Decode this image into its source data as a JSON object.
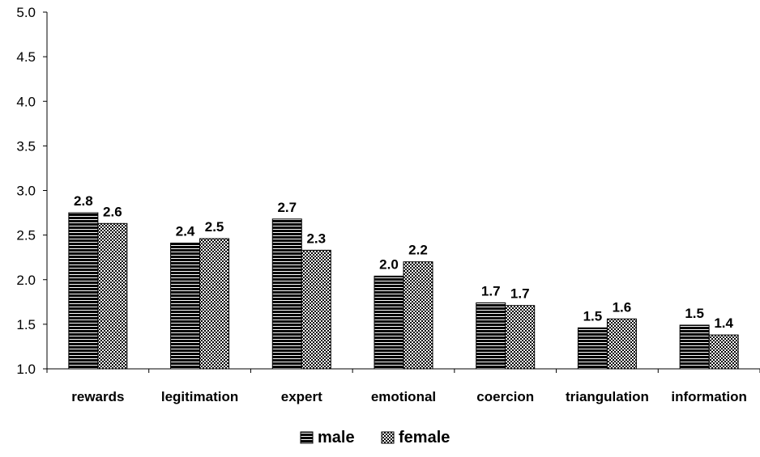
{
  "chart_data": {
    "type": "bar",
    "categories": [
      "rewards",
      "legitimation",
      "expert",
      "emotional",
      "coercion",
      "triangulation",
      "information"
    ],
    "series": [
      {
        "name": "male",
        "values": [
          2.75,
          2.41,
          2.68,
          2.04,
          1.74,
          1.46,
          1.49
        ],
        "labels": [
          "2.8",
          "2.4",
          "2.7",
          "2.0",
          "1.7",
          "1.5",
          "1.5"
        ],
        "pattern": "horizontal-stripes"
      },
      {
        "name": "female",
        "values": [
          2.63,
          2.46,
          2.33,
          2.2,
          1.71,
          1.56,
          1.38
        ],
        "labels": [
          "2.6",
          "2.5",
          "2.3",
          "2.2",
          "1.7",
          "1.6",
          "1.4"
        ],
        "pattern": "checkered"
      }
    ],
    "title": "",
    "xlabel": "",
    "ylabel": "",
    "ylim": [
      1.0,
      5.0
    ],
    "yticks": [
      "1.0",
      "1.5",
      "2.0",
      "2.5",
      "3.0",
      "3.5",
      "4.0",
      "4.5",
      "5.0"
    ],
    "grid": false,
    "legend_position": "bottom-center",
    "colors": {
      "axis": "#000000",
      "bar_dark": "#000000",
      "bar_light": "#ffffff"
    }
  }
}
